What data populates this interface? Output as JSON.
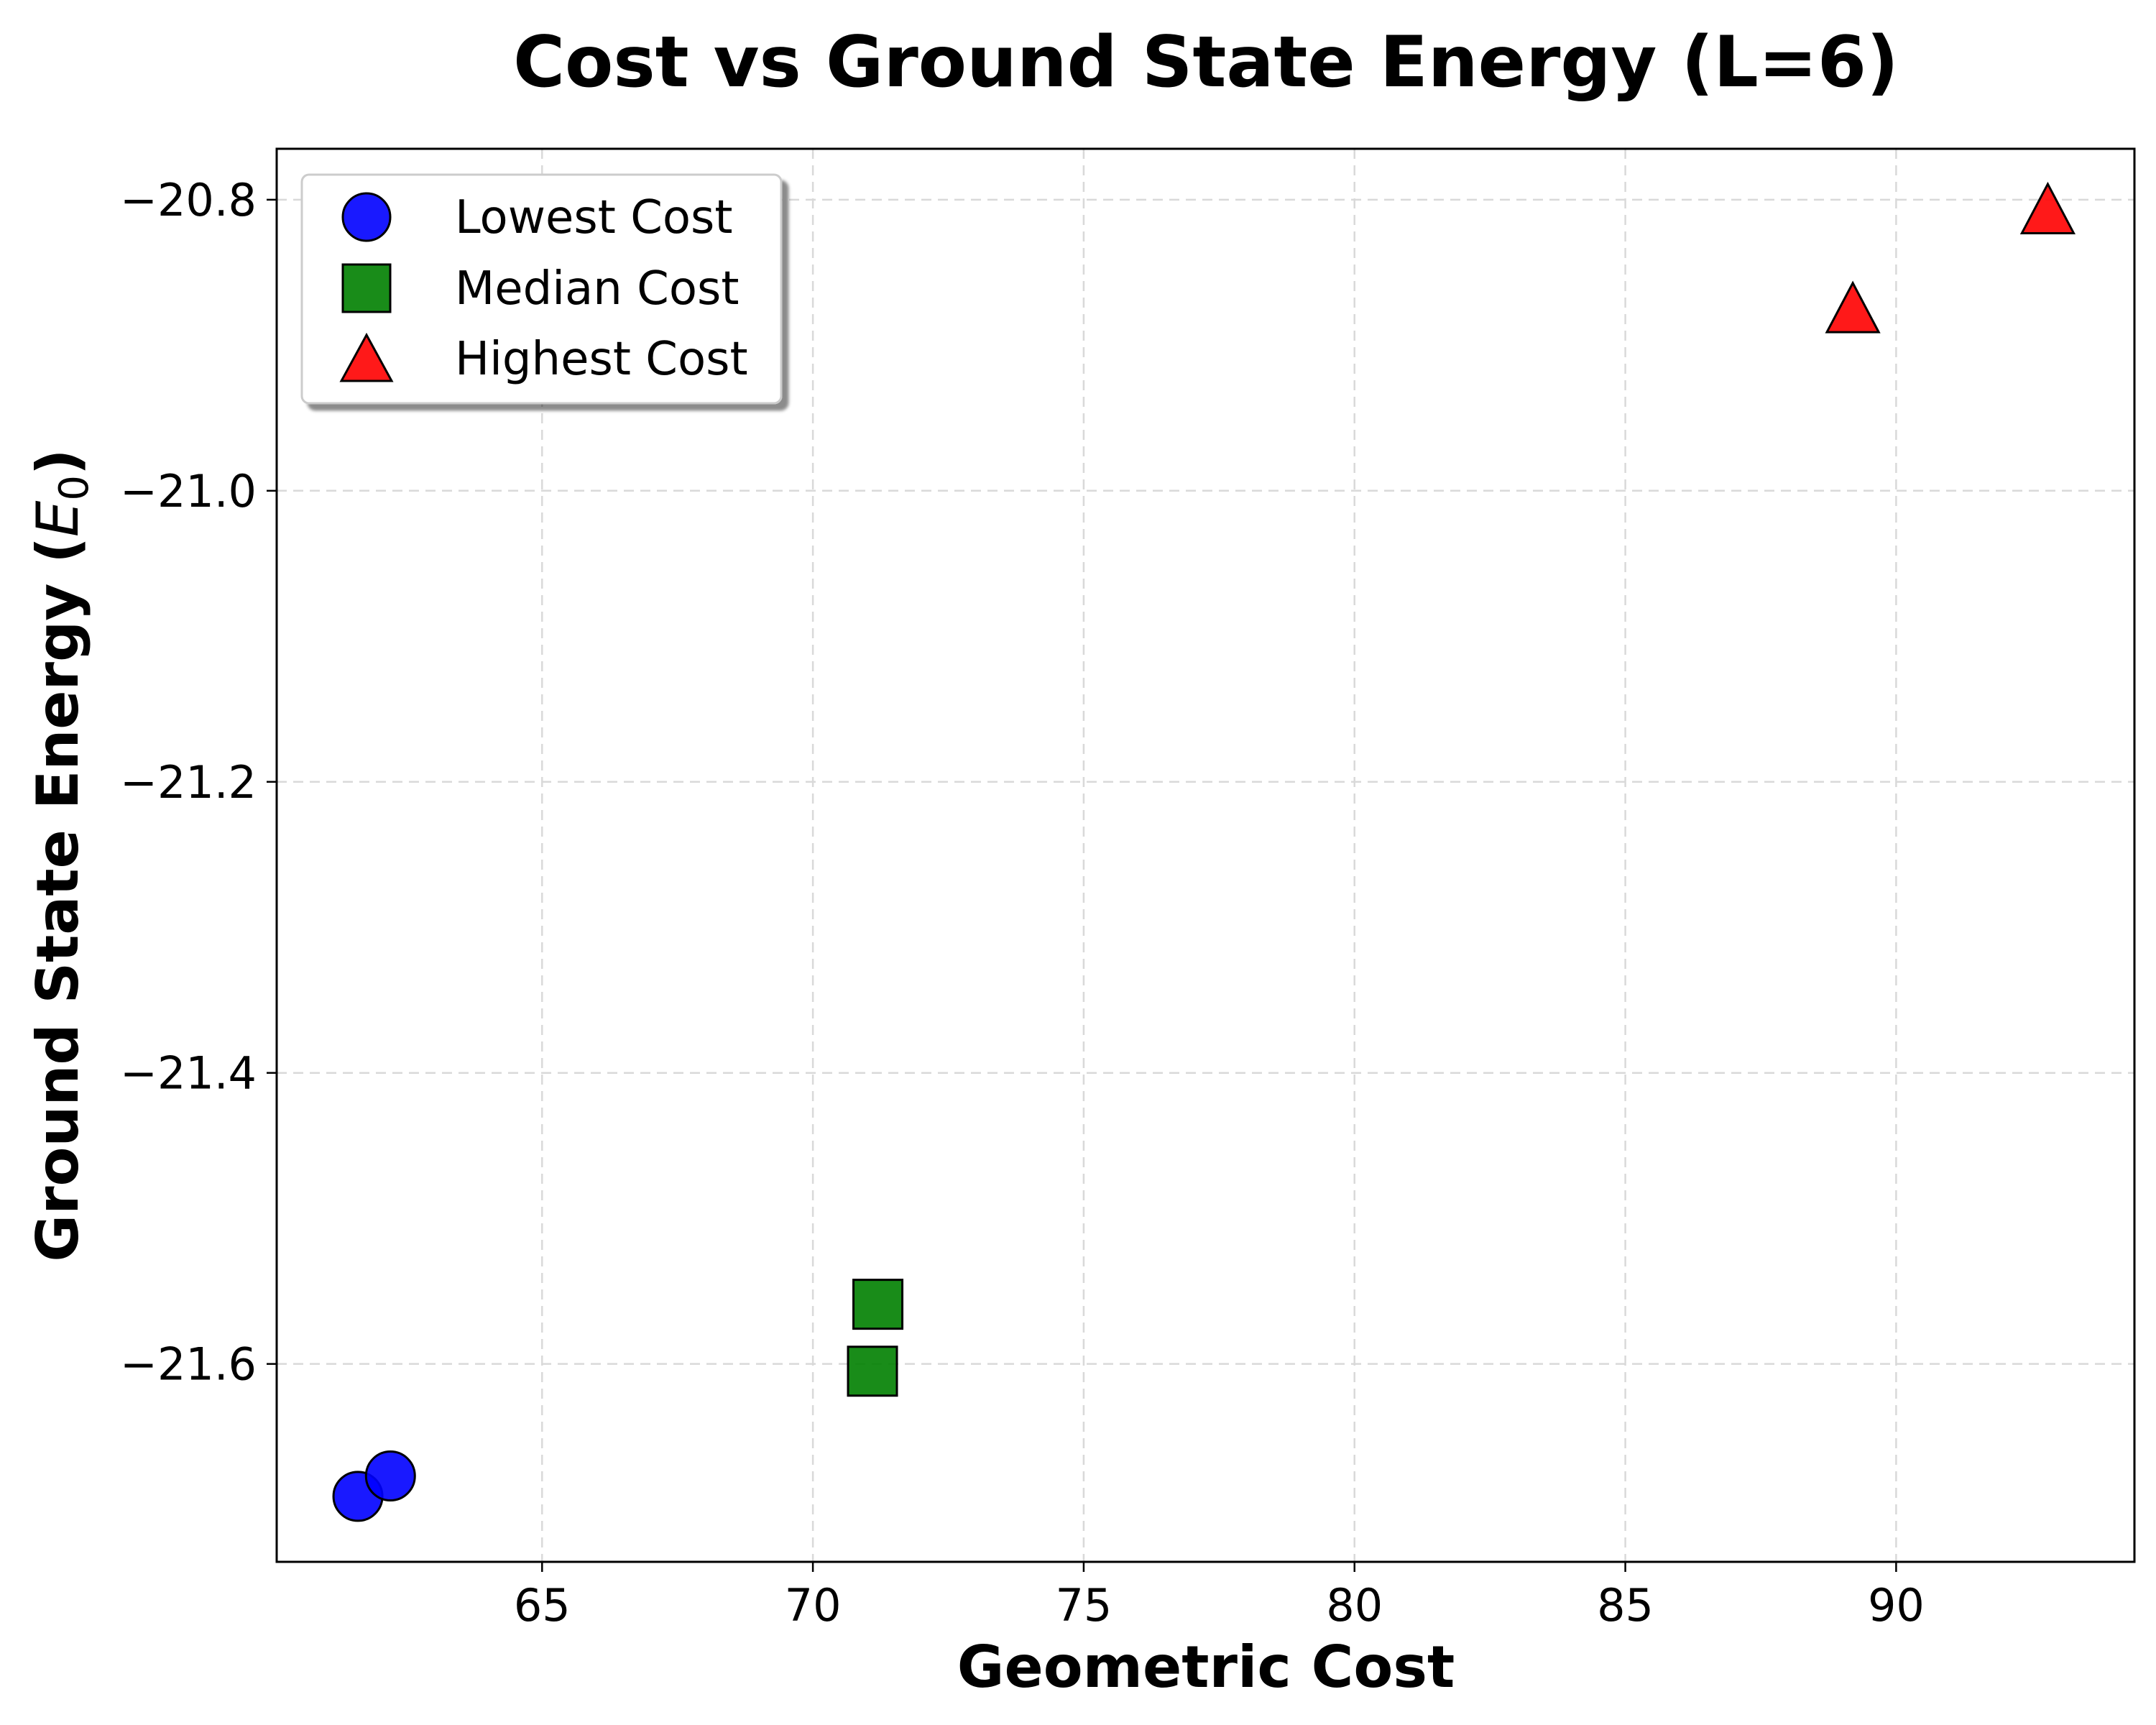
{
  "chart_data": {
    "type": "scatter",
    "title": "Cost vs Ground State Energy (L=6)",
    "xlabel": "Geometric Cost",
    "ylabel_main": "Ground State Energy (",
    "ylabel_sym": "E",
    "ylabel_sub": "0",
    "ylabel_close": ")",
    "xlim": [
      60.1,
      94.4
    ],
    "ylim": [
      -21.736,
      -20.765
    ],
    "xticks": [
      65,
      70,
      75,
      80,
      85,
      90
    ],
    "xtick_labels": [
      "65",
      "70",
      "75",
      "80",
      "85",
      "90"
    ],
    "yticks": [
      -20.8,
      -21.0,
      -21.2,
      -21.4,
      -21.6
    ],
    "ytick_labels": [
      "−20.8",
      "−21.0",
      "−21.2",
      "−21.4",
      "−21.6"
    ],
    "grid": true,
    "legend_position": "top-left",
    "series": [
      {
        "name": "Lowest Cost",
        "marker": "circle",
        "color": "#0000ff",
        "opacity": 0.9,
        "points": [
          {
            "x": 61.6,
            "y": -21.691,
            "label": "lowest-cost-point-1"
          },
          {
            "x": 62.2,
            "y": -21.677,
            "label": "lowest-cost-point-2"
          }
        ]
      },
      {
        "name": "Median Cost",
        "marker": "square",
        "color": "#008000",
        "opacity": 0.9,
        "points": [
          {
            "x": 71.1,
            "y": -21.605,
            "label": "median-cost-point-1"
          },
          {
            "x": 71.2,
            "y": -21.559,
            "label": "median-cost-point-2"
          }
        ]
      },
      {
        "name": "Highest Cost",
        "marker": "triangle",
        "color": "#ff0000",
        "opacity": 0.9,
        "points": [
          {
            "x": 89.2,
            "y": -20.876,
            "label": "highest-cost-point-1"
          },
          {
            "x": 92.8,
            "y": -20.808,
            "label": "highest-cost-point-2"
          }
        ]
      }
    ]
  }
}
